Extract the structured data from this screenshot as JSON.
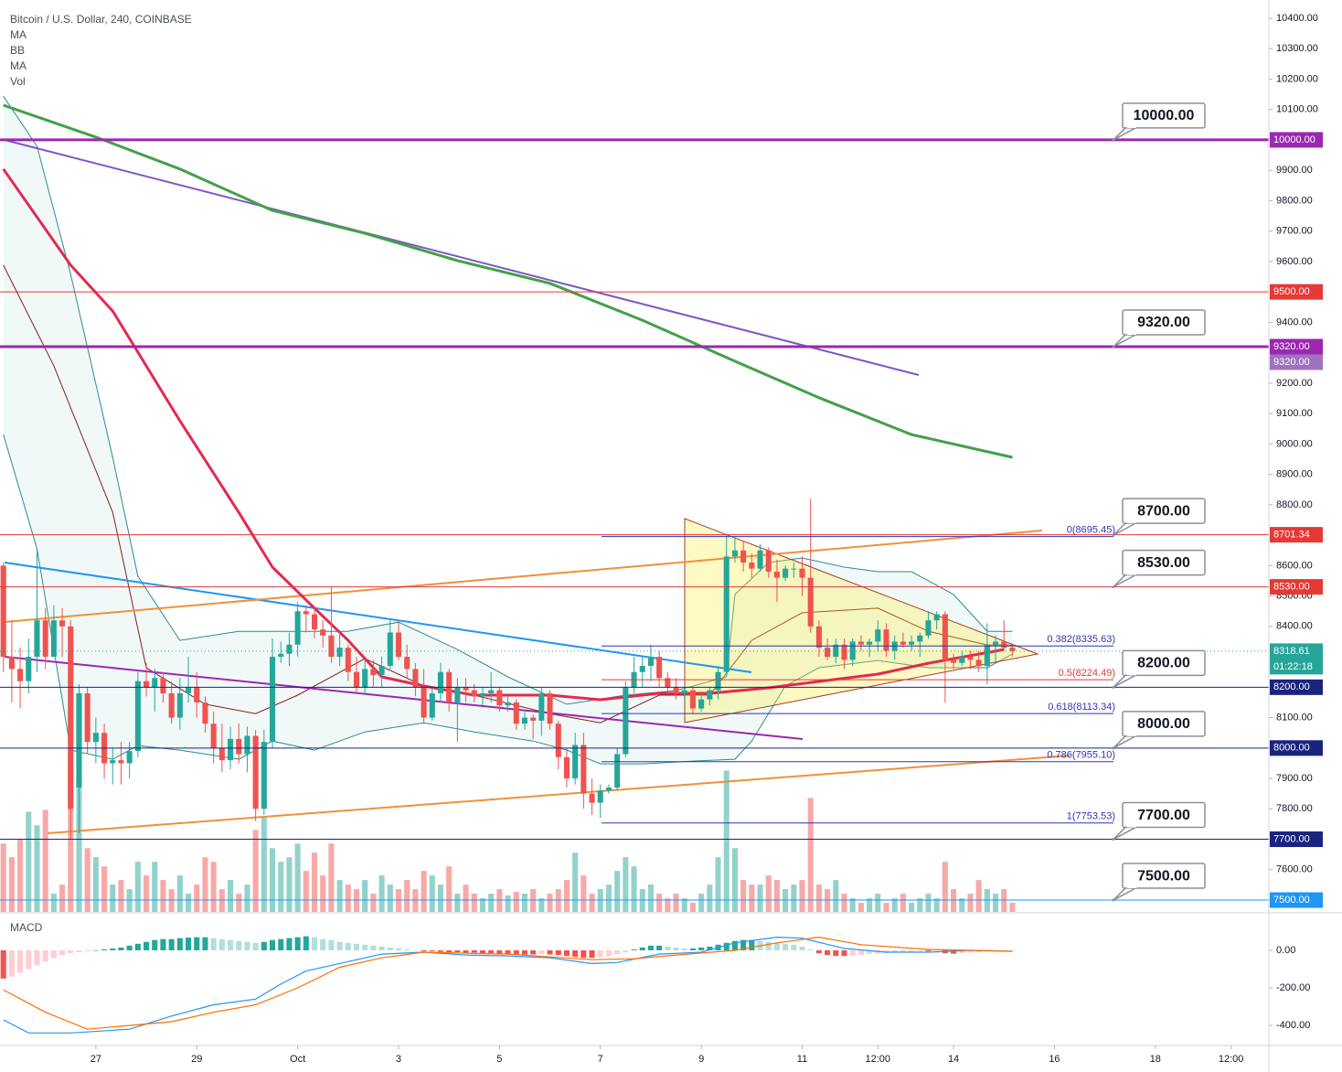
{
  "chart_data": {
    "type": "candlestick",
    "title": "Bitcoin / U.S. Dollar, 240, COINBASE",
    "indicators": [
      "MA",
      "BB",
      "MA",
      "Vol"
    ],
    "open": [
      8600,
      8300,
      8260,
      8220,
      8300,
      8420,
      8300,
      8420,
      8400,
      7870,
      8180,
      8020,
      8050,
      7950,
      7960,
      7950,
      7990,
      8220,
      8200,
      8230,
      8180,
      8100,
      8180,
      8200,
      8150,
      8080,
      8000,
      7960,
      8030,
      7980,
      8040,
      7800,
      8020,
      8300,
      8310,
      8340,
      8450,
      8440,
      8390,
      8370,
      8300,
      8330,
      8250,
      8200,
      8260,
      8240,
      8270,
      8380,
      8300,
      8260,
      8200,
      8100,
      8180,
      8250,
      8150,
      8200,
      8190,
      8170,
      8180,
      8190,
      8140,
      8150,
      8080,
      8100,
      8090,
      8180,
      8080,
      7970,
      7900,
      8010,
      7850,
      7820,
      7860,
      7870,
      7980,
      8200,
      8250,
      8270,
      8300,
      8230,
      8200,
      8180,
      8190,
      8130,
      8160,
      8190,
      8250,
      8630,
      8650,
      8610,
      8590,
      8650,
      8580,
      8560,
      8590,
      8590,
      8560,
      8400,
      8330,
      8300,
      8340,
      8290,
      8350,
      8340,
      8350,
      8390,
      8320,
      8350,
      8340,
      8350,
      8370,
      8420,
      8440,
      8290,
      8280,
      8300,
      8290,
      8270,
      8340,
      8350,
      8330
    ],
    "high": [
      8610,
      8420,
      8330,
      8360,
      8650,
      8460,
      8470,
      8460,
      8420,
      8210,
      8200,
      8100,
      8080,
      8000,
      8020,
      8020,
      8250,
      8280,
      8260,
      8250,
      8220,
      8230,
      8300,
      8250,
      8170,
      8120,
      8080,
      8070,
      8080,
      8070,
      8060,
      8060,
      8360,
      8350,
      8380,
      8480,
      8470,
      8460,
      8420,
      8530,
      8380,
      8340,
      8300,
      8290,
      8290,
      8300,
      8420,
      8420,
      8340,
      8280,
      8260,
      8200,
      8280,
      8260,
      8230,
      8230,
      8210,
      8200,
      8250,
      8200,
      8170,
      8160,
      8120,
      8110,
      8200,
      8190,
      8090,
      8000,
      8050,
      8050,
      7900,
      7880,
      7880,
      8000,
      8220,
      8300,
      8300,
      8340,
      8320,
      8250,
      8230,
      8200,
      8200,
      8180,
      8200,
      8270,
      8700,
      8690,
      8680,
      8640,
      8670,
      8660,
      8620,
      8600,
      8610,
      8630,
      8820,
      8420,
      8360,
      8360,
      8360,
      8360,
      8370,
      8360,
      8420,
      8410,
      8370,
      8380,
      8370,
      8380,
      8450,
      8450,
      8450,
      8310,
      8320,
      8320,
      8320,
      8410,
      8370,
      8420,
      8340
    ],
    "low": [
      8250,
      8150,
      8130,
      8180,
      8250,
      8260,
      8300,
      8300,
      7700,
      7720,
      7980,
      7950,
      7900,
      7880,
      7880,
      7900,
      7970,
      8170,
      8120,
      8150,
      8080,
      8060,
      8150,
      8100,
      8050,
      7950,
      7920,
      7930,
      7950,
      7920,
      7760,
      7780,
      8000,
      8280,
      8270,
      8300,
      8380,
      8360,
      8330,
      8280,
      8270,
      8220,
      8180,
      8180,
      8200,
      8200,
      8260,
      8290,
      8230,
      8170,
      8080,
      8090,
      8150,
      8120,
      8020,
      8150,
      8150,
      8140,
      8150,
      8120,
      8120,
      8060,
      8060,
      8030,
      8040,
      8060,
      7930,
      7870,
      7880,
      7800,
      7780,
      7770,
      7850,
      7860,
      7970,
      8180,
      8200,
      8220,
      8200,
      8180,
      8160,
      8160,
      8110,
      8120,
      8140,
      8160,
      8240,
      8610,
      8580,
      8560,
      8580,
      8560,
      8480,
      8550,
      8560,
      8500,
      8380,
      8300,
      8290,
      8280,
      8260,
      8270,
      8320,
      8300,
      8320,
      8300,
      8290,
      8330,
      8320,
      8300,
      8360,
      8390,
      8150,
      8260,
      8270,
      8260,
      8250,
      8210,
      8280,
      8320,
      8300
    ],
    "close": [
      8300,
      8260,
      8220,
      8300,
      8420,
      8300,
      8420,
      8400,
      7800,
      8180,
      8020,
      8050,
      7950,
      7960,
      7950,
      7990,
      8220,
      8200,
      8230,
      8180,
      8100,
      8180,
      8200,
      8150,
      8080,
      8000,
      7960,
      8030,
      7980,
      8040,
      7800,
      8020,
      8300,
      8310,
      8340,
      8450,
      8440,
      8390,
      8370,
      8300,
      8330,
      8250,
      8200,
      8260,
      8240,
      8270,
      8380,
      8300,
      8260,
      8200,
      8100,
      8180,
      8250,
      8150,
      8200,
      8190,
      8170,
      8180,
      8190,
      8140,
      8150,
      8080,
      8100,
      8090,
      8180,
      8080,
      7970,
      7900,
      8010,
      7850,
      7820,
      7860,
      7870,
      7980,
      8200,
      8250,
      8270,
      8300,
      8230,
      8200,
      8180,
      8190,
      8130,
      8160,
      8190,
      8250,
      8630,
      8650,
      8610,
      8590,
      8650,
      8580,
      8560,
      8590,
      8590,
      8560,
      8400,
      8330,
      8300,
      8340,
      8290,
      8350,
      8340,
      8350,
      8390,
      8320,
      8350,
      8340,
      8350,
      8370,
      8420,
      8440,
      8290,
      8280,
      8300,
      8290,
      8270,
      8340,
      8350,
      8330,
      8318.61
    ],
    "volume": [
      75,
      60,
      80,
      110,
      95,
      112,
      20,
      30,
      160,
      148,
      70,
      60,
      50,
      30,
      35,
      25,
      55,
      40,
      55,
      35,
      25,
      40,
      20,
      30,
      60,
      55,
      25,
      35,
      20,
      30,
      90,
      105,
      70,
      55,
      60,
      75,
      45,
      65,
      40,
      75,
      35,
      30,
      25,
      35,
      20,
      40,
      30,
      25,
      35,
      25,
      45,
      40,
      30,
      50,
      20,
      30,
      20,
      15,
      20,
      25,
      18,
      22,
      20,
      25,
      15,
      20,
      25,
      35,
      65,
      40,
      20,
      25,
      30,
      45,
      60,
      50,
      25,
      30,
      20,
      15,
      20,
      15,
      10,
      20,
      30,
      60,
      155,
      70,
      35,
      30,
      30,
      40,
      35,
      25,
      30,
      35,
      125,
      30,
      25,
      35,
      20,
      15,
      10,
      15,
      20,
      10,
      15,
      20,
      10,
      15,
      20,
      15,
      55,
      25,
      15,
      20,
      35,
      25,
      20,
      25,
      10
    ],
    "volume_ylim": [
      0,
      1000
    ],
    "up_color": "#26a69a",
    "down_color": "#ef5350",
    "volume_up_color": "rgba(38,166,154,0.5)",
    "volume_down_color": "rgba(239,83,80,0.5)",
    "grid": false,
    "xlim": [
      -0.4,
      150.5
    ],
    "ylim": [
      7461,
      10460
    ],
    "xticks": [
      {
        "value": 11,
        "label": "27"
      },
      {
        "value": 23,
        "label": "29"
      },
      {
        "value": 35,
        "label": "Oct"
      },
      {
        "value": 47,
        "label": "3"
      },
      {
        "value": 59,
        "label": "5"
      },
      {
        "value": 71,
        "label": "7"
      },
      {
        "value": 83,
        "label": "9"
      },
      {
        "value": 95,
        "label": "11"
      },
      {
        "value": 104,
        "label": "12:00"
      },
      {
        "value": 113,
        "label": "14"
      },
      {
        "value": 125,
        "label": "16"
      },
      {
        "value": 137,
        "label": "18"
      },
      {
        "value": 146,
        "label": "12:00"
      }
    ],
    "yticks": [
      {
        "value": 10400,
        "label": "10400.00"
      },
      {
        "value": 10300,
        "label": "10300.00"
      },
      {
        "value": 10200,
        "label": "10200.00"
      },
      {
        "value": 10100,
        "label": "10100.00"
      },
      {
        "value": 9900,
        "label": "9900.00"
      },
      {
        "value": 9800,
        "label": "9800.00"
      },
      {
        "value": 9700,
        "label": "9700.00"
      },
      {
        "value": 9600,
        "label": "9600.00"
      },
      {
        "value": 9400,
        "label": "9400.00"
      },
      {
        "value": 9200,
        "label": "9200.00"
      },
      {
        "value": 9100,
        "label": "9100.00"
      },
      {
        "value": 9000,
        "label": "9000.00"
      },
      {
        "value": 8900,
        "label": "8900.00"
      },
      {
        "value": 8800,
        "label": "8800.00"
      },
      {
        "value": 8600,
        "label": "8600.00"
      },
      {
        "value": 8500,
        "label": "8500.00"
      },
      {
        "value": 8400,
        "label": "8400.00"
      },
      {
        "value": 8100,
        "label": "8100.00"
      },
      {
        "value": 7900,
        "label": "7900.00"
      },
      {
        "value": 7800,
        "label": "7800.00"
      },
      {
        "value": 7600,
        "label": "7600.00"
      }
    ],
    "bands": {
      "color": "#2a8c8c",
      "fill": "rgba(38,166,154,0.07)",
      "basis_color": "#8b1a1a",
      "upper": {
        "x": [
          0,
          4,
          8,
          13,
          16,
          21,
          28,
          34,
          41,
          47,
          54,
          60,
          67,
          74,
          80,
          86,
          87,
          91,
          95,
          100,
          104,
          108,
          113,
          117,
          120
        ],
        "values": [
          10144,
          9979,
          9558,
          8956,
          8565,
          8354,
          8384,
          8384,
          8384,
          8414,
          8324,
          8234,
          8144,
          8174,
          8189,
          8234,
          8505,
          8610,
          8625,
          8595,
          8580,
          8580,
          8505,
          8384,
          8384
        ]
      },
      "lower": {
        "x": [
          0,
          4,
          8,
          13,
          16,
          21,
          28,
          32,
          37,
          43,
          50,
          56,
          63,
          67,
          71,
          76,
          82,
          87,
          89,
          93,
          97,
          104,
          110,
          117,
          120
        ],
        "values": [
          9031,
          8655,
          7993,
          7963,
          8008,
          7993,
          7963,
          8023,
          7993,
          8053,
          8083,
          8053,
          8023,
          7993,
          7948,
          7948,
          7957,
          7963,
          8023,
          8204,
          8264,
          8288,
          8264,
          8264,
          8309
        ]
      },
      "basis": {
        "x": [
          0,
          6,
          13,
          17,
          24,
          30,
          35,
          43,
          50,
          56,
          65,
          71,
          78,
          84,
          89,
          95,
          104,
          110,
          117,
          120
        ],
        "values": [
          9588,
          9257,
          8775,
          8264,
          8144,
          8113,
          8174,
          8294,
          8204,
          8174,
          8113,
          8083,
          8174,
          8174,
          8354,
          8445,
          8460,
          8384,
          8339,
          8339
        ]
      }
    },
    "overlays": [
      {
        "color": "#e5294f",
        "width": 3,
        "x": [
          0,
          8,
          13,
          21,
          28,
          32,
          37,
          41,
          45,
          50,
          56,
          65,
          71,
          78,
          84,
          91,
          97,
          104,
          110,
          119
        ],
        "values": [
          9904,
          9588,
          9437,
          9076,
          8775,
          8595,
          8460,
          8354,
          8234,
          8204,
          8174,
          8174,
          8159,
          8180,
          8180,
          8198,
          8219,
          8243,
          8279,
          8324
        ]
      },
      {
        "color": "#43a047",
        "width": 3,
        "x": [
          0,
          11,
          21,
          32,
          43,
          54,
          65,
          76,
          87,
          97,
          108,
          120
        ],
        "values": [
          10114,
          10009,
          9904,
          9768,
          9693,
          9603,
          9528,
          9407,
          9272,
          9152,
          9031,
          8956
        ]
      }
    ],
    "levels": [
      {
        "value": 10000,
        "label": "10000.00",
        "color": "#9c27b0",
        "width": 3
      },
      {
        "value": 9500,
        "label": "9500.00",
        "color": "#e53935",
        "width": 1
      },
      {
        "value": 9320,
        "label": "9320.00",
        "color": "#9c27b0",
        "width": 3
      },
      {
        "value": 8701.34,
        "label": "8701.34",
        "color": "#e53935",
        "width": 1
      },
      {
        "value": 8530,
        "label": "8530.00",
        "color": "#e53935",
        "width": 1
      },
      {
        "value": 8200,
        "label": "8200.00",
        "color": "#1a237e",
        "width": 1
      },
      {
        "value": 8000,
        "label": "8000.00",
        "color": "#1a237e",
        "width": 1
      },
      {
        "value": 7700,
        "label": "7700.00",
        "color": "#1a237e",
        "width": 1
      },
      {
        "value": 7500,
        "label": "7500.00",
        "color": "#2196f3",
        "width": 1
      }
    ],
    "alerts": [
      {
        "value": 9320,
        "label": "9320.00",
        "color": "#9e72c0"
      }
    ],
    "callouts": [
      {
        "value": 10000,
        "label": "10000.00"
      },
      {
        "value": 9320,
        "label": "9320.00"
      },
      {
        "value": 8700,
        "label": "8700.00"
      },
      {
        "value": 8530,
        "label": "8530.00"
      },
      {
        "value": 8200,
        "label": "8200.00"
      },
      {
        "value": 8000,
        "label": "8000.00"
      },
      {
        "value": 7700,
        "label": "7700.00"
      },
      {
        "value": 7500,
        "label": "7500.00"
      }
    ],
    "fib_levels": [
      {
        "value": 8695.45,
        "label": "0(8695.45)",
        "color": "#2f34b8"
      },
      {
        "value": 8335.63,
        "label": "0.382(8335.63)",
        "color": "#2f34b8"
      },
      {
        "value": 8224.49,
        "label": "0.5(8224.49)",
        "color": "#e53935"
      },
      {
        "value": 8113.34,
        "label": "0.618(8113.34)",
        "color": "#2f34b8"
      },
      {
        "value": 7955.1,
        "label": "0.786(7955.10)",
        "color": "#2f34b8"
      },
      {
        "value": 7753.53,
        "label": "1(7753.53)",
        "color": "#2f34b8"
      }
    ],
    "current_price": {
      "value": 8318.61,
      "label": "8318.61",
      "countdown": "01:22:18",
      "color": "#26a69a"
    },
    "macd": {
      "title": "MACD",
      "ylim": [
        -502,
        190
      ],
      "yticks": [
        {
          "value": 0,
          "label": "0.00"
        },
        {
          "value": -200,
          "label": "-200.00"
        },
        {
          "value": -400,
          "label": "-400.00"
        }
      ],
      "colors": {
        "up": "#26a69a",
        "up_fading": "#b2dfdb",
        "down": "#ef5350",
        "down_fading": "#ffcdd2"
      },
      "histogram": [
        -150,
        -140,
        -120,
        -100,
        -80,
        -60,
        -40,
        -25,
        -15,
        -10,
        -5,
        0,
        5,
        10,
        15,
        25,
        35,
        45,
        55,
        60,
        60,
        65,
        68,
        70,
        70,
        65,
        60,
        55,
        50,
        45,
        40,
        45,
        55,
        60,
        65,
        70,
        75,
        70,
        60,
        55,
        45,
        40,
        35,
        30,
        25,
        20,
        15,
        10,
        5,
        0,
        -5,
        -5,
        -8,
        -10,
        -10,
        -12,
        -12,
        -15,
        -15,
        -18,
        -20,
        -20,
        -22,
        -22,
        -20,
        -22,
        -25,
        -30,
        -35,
        -40,
        -40,
        -35,
        -30,
        -20,
        -10,
        5,
        15,
        25,
        25,
        20,
        15,
        10,
        10,
        15,
        20,
        30,
        40,
        50,
        55,
        55,
        50,
        45,
        40,
        35,
        30,
        20,
        5,
        -15,
        -25,
        -30,
        -30,
        -28,
        -25,
        -20,
        -18,
        -15,
        -12,
        -10,
        -8,
        -5,
        -5,
        -3,
        -15,
        -18,
        -15,
        -12,
        -10,
        -8,
        -5,
        -3,
        -2
      ],
      "series": [
        {
          "color": "#2196f3",
          "x": [
            0,
            3,
            8,
            15,
            20,
            25,
            30,
            33,
            36,
            40,
            45,
            50,
            55,
            60,
            65,
            70,
            73,
            78,
            83,
            87,
            92,
            95,
            100,
            105,
            110,
            115,
            120
          ],
          "values": [
            -370,
            -440,
            -440,
            -420,
            -350,
            -290,
            -260,
            -180,
            -110,
            -70,
            -20,
            -10,
            -25,
            -30,
            -40,
            -70,
            -65,
            -20,
            -10,
            40,
            70,
            65,
            10,
            -10,
            -10,
            0,
            -5
          ]
        },
        {
          "color": "#ff6d00",
          "x": [
            0,
            5,
            10,
            15,
            20,
            25,
            30,
            35,
            40,
            45,
            50,
            55,
            60,
            70,
            75,
            80,
            87,
            92,
            97,
            102,
            110,
            120
          ],
          "values": [
            -210,
            -330,
            -420,
            -400,
            -380,
            -330,
            -290,
            -200,
            -90,
            -40,
            -10,
            -15,
            -20,
            -50,
            -45,
            -25,
            0,
            40,
            70,
            30,
            5,
            -5
          ]
        }
      ]
    }
  }
}
